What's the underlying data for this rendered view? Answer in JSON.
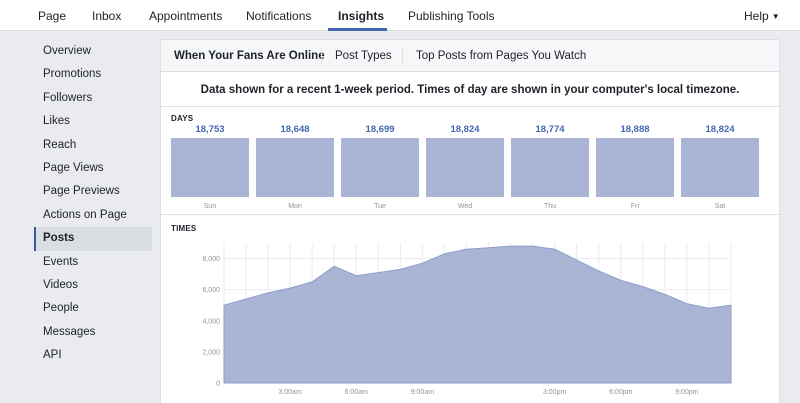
{
  "topnav": {
    "tabs": [
      {
        "label": "Page"
      },
      {
        "label": "Inbox"
      },
      {
        "label": "Appointments"
      },
      {
        "label": "Notifications"
      },
      {
        "label": "Insights"
      },
      {
        "label": "Publishing Tools"
      }
    ],
    "active_tab": "Insights",
    "help_label": "Help",
    "help_icon": "caret-down-icon"
  },
  "sidebar": {
    "items": [
      {
        "label": "Overview"
      },
      {
        "label": "Promotions"
      },
      {
        "label": "Followers"
      },
      {
        "label": "Likes"
      },
      {
        "label": "Reach"
      },
      {
        "label": "Page Views"
      },
      {
        "label": "Page Previews"
      },
      {
        "label": "Actions on Page"
      },
      {
        "label": "Posts"
      },
      {
        "label": "Events"
      },
      {
        "label": "Videos"
      },
      {
        "label": "People"
      },
      {
        "label": "Messages"
      },
      {
        "label": "API"
      }
    ],
    "active_item": "Posts"
  },
  "subtabs": [
    {
      "label": "When Your Fans Are Online"
    },
    {
      "label": "Post Types"
    },
    {
      "label": "Top Posts from Pages You Watch"
    }
  ],
  "active_subtab": "When Your Fans Are Online",
  "notice": "Data shown for a recent 1-week period. Times of day are shown in your computer's local timezone.",
  "days_label": "DAYS",
  "times_label": "TIMES",
  "colors": {
    "accent": "#4267b2",
    "bar_fill": "#aab5d6",
    "area_fill": "#aab5d6",
    "area_stroke": "#8d9cc8",
    "gridline": "#e9ebee"
  },
  "chart_data": [
    {
      "type": "bar",
      "title": "DAYS",
      "categories": [
        "Sun",
        "Mon",
        "Tue",
        "Wed",
        "Thu",
        "Fri",
        "Sat"
      ],
      "values": [
        18753,
        18648,
        18699,
        18824,
        18774,
        18888,
        18824
      ],
      "value_labels": [
        "18,753",
        "18,648",
        "18,699",
        "18,824",
        "18,774",
        "18,888",
        "18,824"
      ],
      "grid": false
    },
    {
      "type": "area",
      "title": "TIMES",
      "x": [
        0,
        1,
        2,
        3,
        4,
        5,
        6,
        7,
        8,
        9,
        10,
        11,
        12,
        13,
        14,
        15,
        16,
        17,
        18,
        19,
        20,
        21,
        22,
        23
      ],
      "xtick_labels": [
        "3:00am",
        "6:00am",
        "9:00am",
        "3:00pm",
        "6:00pm",
        "9:00pm"
      ],
      "xtick_positions": [
        3,
        6,
        9,
        15,
        18,
        21
      ],
      "values": [
        5000,
        5400,
        5800,
        6100,
        6500,
        7500,
        6900,
        7100,
        7300,
        7700,
        8300,
        8600,
        8700,
        8800,
        8800,
        8600,
        7900,
        7200,
        6600,
        6200,
        5700,
        5100,
        4800,
        5000
      ],
      "yticks": [
        0,
        2000,
        4000,
        6000,
        8000
      ],
      "ytick_labels": [
        "0",
        "2,000",
        "4,000",
        "6,000",
        "8,000"
      ],
      "ylim": [
        0,
        9000
      ],
      "grid": true
    }
  ]
}
